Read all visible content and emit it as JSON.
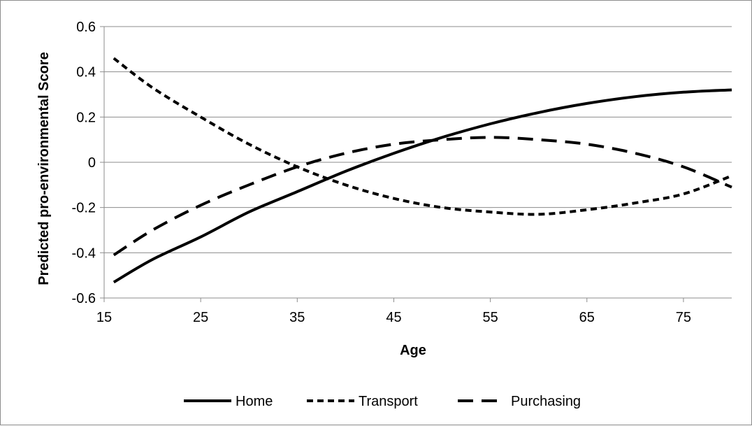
{
  "chart_data": {
    "type": "line",
    "title": "",
    "xlabel": "Age",
    "ylabel": "Predicted pro-environmental Score",
    "xlim": [
      15,
      80
    ],
    "ylim": [
      -0.6,
      0.6
    ],
    "x_ticks": [
      15,
      25,
      35,
      45,
      55,
      65,
      75
    ],
    "y_ticks": [
      0.6,
      0.4,
      0.2,
      0,
      -0.2,
      -0.4,
      -0.6
    ],
    "x_tick_labels": [
      "15",
      "25",
      "35",
      "45",
      "55",
      "65",
      "75"
    ],
    "y_tick_labels": [
      "0.6",
      "0.4",
      "0.2",
      "0",
      "-0.2",
      "-0.4",
      "-0.6"
    ],
    "grid": "horizontal",
    "legend_position": "bottom",
    "x": [
      16,
      20,
      25,
      30,
      35,
      40,
      45,
      50,
      55,
      60,
      65,
      70,
      75,
      80
    ],
    "series": [
      {
        "name": "Home",
        "style": "solid",
        "color": "#000000",
        "values": [
          -0.53,
          -0.43,
          -0.33,
          -0.22,
          -0.13,
          -0.04,
          0.04,
          0.11,
          0.17,
          0.22,
          0.26,
          0.29,
          0.31,
          0.32
        ]
      },
      {
        "name": "Transport",
        "style": "short-dash",
        "color": "#000000",
        "values": [
          0.46,
          0.33,
          0.2,
          0.08,
          -0.02,
          -0.1,
          -0.16,
          -0.2,
          -0.22,
          -0.23,
          -0.21,
          -0.18,
          -0.14,
          -0.06
        ]
      },
      {
        "name": "Purchasing",
        "style": "long-dash",
        "color": "#000000",
        "values": [
          -0.41,
          -0.3,
          -0.19,
          -0.1,
          -0.02,
          0.04,
          0.08,
          0.1,
          0.11,
          0.1,
          0.08,
          0.04,
          -0.02,
          -0.11
        ]
      }
    ]
  }
}
